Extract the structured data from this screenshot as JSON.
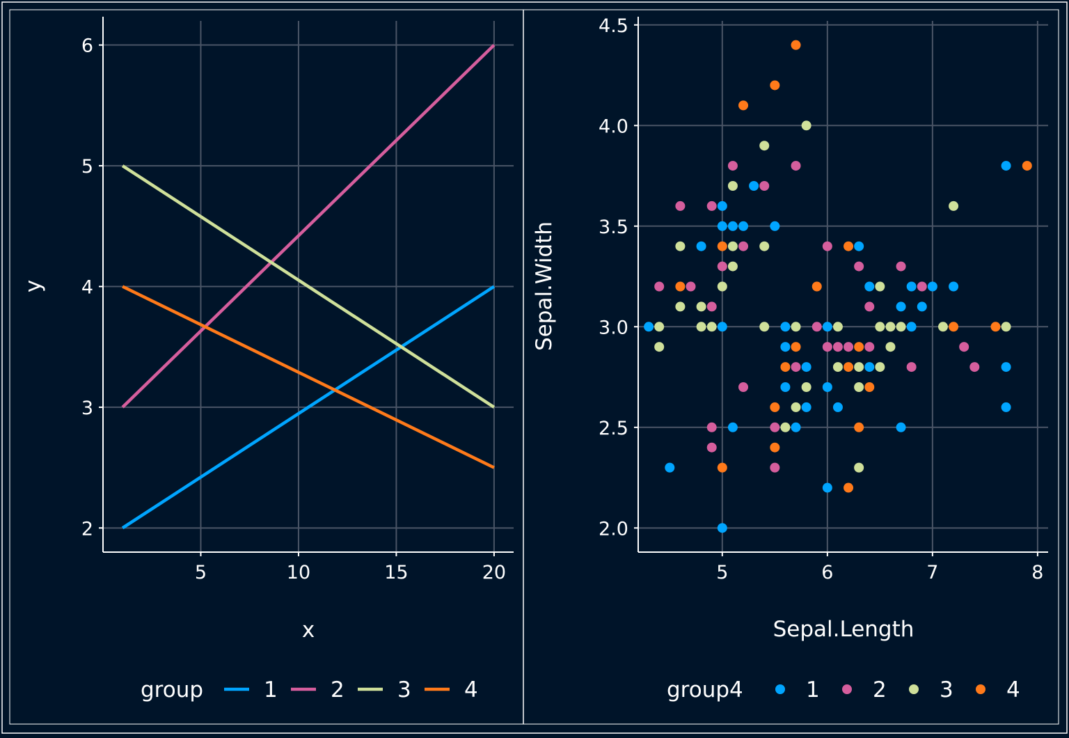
{
  "colors": {
    "background": "#001429",
    "grid": "#4a5566",
    "axis": "#ffffff",
    "text": "#ffffff",
    "series": [
      "#00a5ff",
      "#d55e9d",
      "#cfe09a",
      "#ff7a1a"
    ]
  },
  "chart_data": [
    {
      "type": "line",
      "xlabel": "x",
      "ylabel": "y",
      "xlim": [
        0,
        21
      ],
      "ylim": [
        1.8,
        6.2
      ],
      "xticks": [
        5,
        10,
        15,
        20
      ],
      "yticks": [
        2,
        3,
        4,
        5,
        6
      ],
      "grid": true,
      "legend": {
        "title": "group",
        "position": "bottom"
      },
      "series": [
        {
          "name": "1",
          "x": [
            1,
            20
          ],
          "y": [
            2,
            4
          ]
        },
        {
          "name": "2",
          "x": [
            1,
            20
          ],
          "y": [
            3,
            6
          ]
        },
        {
          "name": "3",
          "x": [
            1,
            20
          ],
          "y": [
            5,
            3
          ]
        },
        {
          "name": "4",
          "x": [
            1,
            20
          ],
          "y": [
            4,
            2.5
          ]
        }
      ]
    },
    {
      "type": "scatter",
      "xlabel": "Sepal.Length",
      "ylabel": "Sepal.Width",
      "xlim": [
        4.2,
        8.1
      ],
      "ylim": [
        1.88,
        4.52
      ],
      "xticks": [
        5,
        6,
        7,
        8
      ],
      "yticks": [
        "2.0",
        "2.5",
        "3.0",
        "3.5",
        "4.0",
        "4.5"
      ],
      "grid": true,
      "legend": {
        "title": "group4",
        "position": "bottom"
      },
      "series": [
        {
          "name": "1",
          "points": [
            [
              4.3,
              3.0
            ],
            [
              4.5,
              2.3
            ],
            [
              4.8,
              3.4
            ],
            [
              5.0,
              3.6
            ],
            [
              5.0,
              3.5
            ],
            [
              5.0,
              3.0
            ],
            [
              5.0,
              2.0
            ],
            [
              5.1,
              3.5
            ],
            [
              5.1,
              2.5
            ],
            [
              5.2,
              3.5
            ],
            [
              5.3,
              3.7
            ],
            [
              5.5,
              3.5
            ],
            [
              5.6,
              3.0
            ],
            [
              5.6,
              2.9
            ],
            [
              5.6,
              2.7
            ],
            [
              5.7,
              2.5
            ],
            [
              5.8,
              2.8
            ],
            [
              5.8,
              2.6
            ],
            [
              6.0,
              3.0
            ],
            [
              6.0,
              2.7
            ],
            [
              6.0,
              2.2
            ],
            [
              6.1,
              2.6
            ],
            [
              6.3,
              3.4
            ],
            [
              6.4,
              3.2
            ],
            [
              6.4,
              2.8
            ],
            [
              6.7,
              3.1
            ],
            [
              6.7,
              2.5
            ],
            [
              6.8,
              3.2
            ],
            [
              6.8,
              3.0
            ],
            [
              6.9,
              3.1
            ],
            [
              7.0,
              3.2
            ],
            [
              7.2,
              3.2
            ],
            [
              7.7,
              3.8
            ],
            [
              7.7,
              2.8
            ],
            [
              7.7,
              2.6
            ]
          ]
        },
        {
          "name": "2",
          "points": [
            [
              4.4,
              3.2
            ],
            [
              4.6,
              3.6
            ],
            [
              4.7,
              3.2
            ],
            [
              4.9,
              3.6
            ],
            [
              4.9,
              3.1
            ],
            [
              4.9,
              2.5
            ],
            [
              4.9,
              2.4
            ],
            [
              5.0,
              3.3
            ],
            [
              5.1,
              3.8
            ],
            [
              5.2,
              3.4
            ],
            [
              5.2,
              2.7
            ],
            [
              5.4,
              3.7
            ],
            [
              5.5,
              2.5
            ],
            [
              5.5,
              2.3
            ],
            [
              5.7,
              3.8
            ],
            [
              5.7,
              2.8
            ],
            [
              5.9,
              3.0
            ],
            [
              6.0,
              3.4
            ],
            [
              6.0,
              2.9
            ],
            [
              6.1,
              2.9
            ],
            [
              6.2,
              2.9
            ],
            [
              6.3,
              3.3
            ],
            [
              6.4,
              3.1
            ],
            [
              6.4,
              2.9
            ],
            [
              6.7,
              3.3
            ],
            [
              6.8,
              2.8
            ],
            [
              6.9,
              3.2
            ],
            [
              7.3,
              2.9
            ],
            [
              7.4,
              2.8
            ]
          ]
        },
        {
          "name": "3",
          "points": [
            [
              4.4,
              3.0
            ],
            [
              4.4,
              2.9
            ],
            [
              4.6,
              3.4
            ],
            [
              4.6,
              3.1
            ],
            [
              4.8,
              3.1
            ],
            [
              4.8,
              3.0
            ],
            [
              4.9,
              3.0
            ],
            [
              5.0,
              3.2
            ],
            [
              5.1,
              3.7
            ],
            [
              5.1,
              3.4
            ],
            [
              5.1,
              3.3
            ],
            [
              5.4,
              3.9
            ],
            [
              5.4,
              3.4
            ],
            [
              5.4,
              3.0
            ],
            [
              5.6,
              2.5
            ],
            [
              5.7,
              3.0
            ],
            [
              5.7,
              2.6
            ],
            [
              5.8,
              4.0
            ],
            [
              5.8,
              2.7
            ],
            [
              6.1,
              3.0
            ],
            [
              6.1,
              2.8
            ],
            [
              6.3,
              2.8
            ],
            [
              6.3,
              2.7
            ],
            [
              6.3,
              2.3
            ],
            [
              6.5,
              3.2
            ],
            [
              6.5,
              3.0
            ],
            [
              6.5,
              2.8
            ],
            [
              6.6,
              3.0
            ],
            [
              6.6,
              2.9
            ],
            [
              6.7,
              3.0
            ],
            [
              7.1,
              3.0
            ],
            [
              7.2,
              3.6
            ],
            [
              7.7,
              3.0
            ]
          ]
        },
        {
          "name": "4",
          "points": [
            [
              4.6,
              3.2
            ],
            [
              5.0,
              3.4
            ],
            [
              5.0,
              2.3
            ],
            [
              5.2,
              4.1
            ],
            [
              5.5,
              4.2
            ],
            [
              5.5,
              2.6
            ],
            [
              5.5,
              2.4
            ],
            [
              5.6,
              2.8
            ],
            [
              5.7,
              4.4
            ],
            [
              5.7,
              2.9
            ],
            [
              5.9,
              3.2
            ],
            [
              6.2,
              3.4
            ],
            [
              6.2,
              2.8
            ],
            [
              6.2,
              2.2
            ],
            [
              6.3,
              2.9
            ],
            [
              6.3,
              2.5
            ],
            [
              6.4,
              2.7
            ],
            [
              7.2,
              3.0
            ],
            [
              7.6,
              3.0
            ],
            [
              7.9,
              3.8
            ]
          ]
        }
      ]
    }
  ]
}
